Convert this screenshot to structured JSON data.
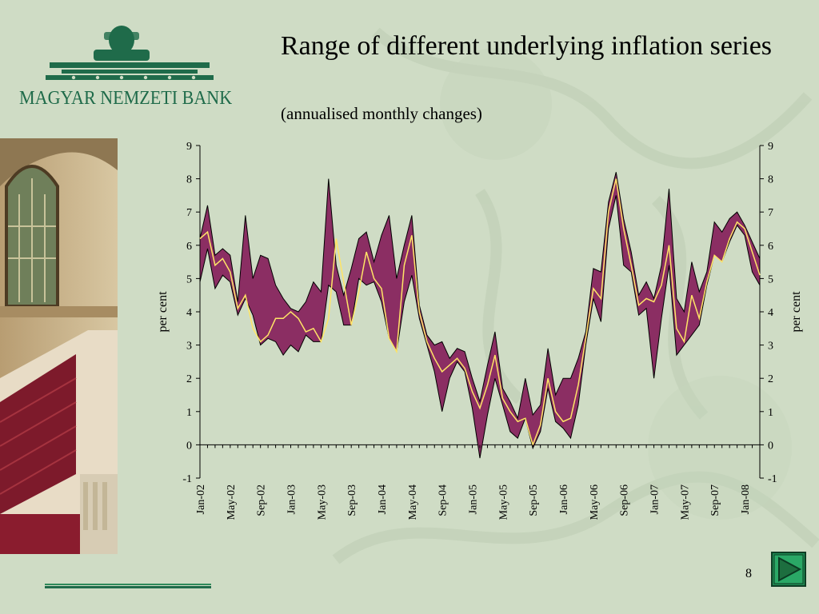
{
  "header": {
    "bank_name": "MAGYAR NEMZETI BANK",
    "title": "Range of different underlying inflation series",
    "subtitle": "(annualised monthly changes)"
  },
  "footer": {
    "page_number": "8",
    "next_icon": "play-triangle-icon"
  },
  "colors": {
    "background": "#cfdcc5",
    "band_fill": "#8b2e63",
    "center_line": "#ffe566",
    "brand_green": "#1f6b4a"
  },
  "chart_data": {
    "type": "area",
    "ylabel_left": "per cent",
    "ylabel_right": "per cent",
    "ylim": [
      -1,
      9
    ],
    "yticks": [
      -1,
      0,
      1,
      2,
      3,
      4,
      5,
      6,
      7,
      8,
      9
    ],
    "xtick_labels": [
      "Jan-02",
      "May-02",
      "Sep-02",
      "Jan-03",
      "May-03",
      "Sep-03",
      "Jan-04",
      "May-04",
      "Sep-04",
      "Jan-05",
      "May-05",
      "Sep-05",
      "Jan-06",
      "May-06",
      "Sep-06",
      "Jan-07",
      "May-07",
      "Sep-07",
      "Jan-08"
    ],
    "x": [
      "Jan-02",
      "Feb-02",
      "Mar-02",
      "Apr-02",
      "May-02",
      "Jun-02",
      "Jul-02",
      "Aug-02",
      "Sep-02",
      "Oct-02",
      "Nov-02",
      "Dec-02",
      "Jan-03",
      "Feb-03",
      "Mar-03",
      "Apr-03",
      "May-03",
      "Jun-03",
      "Jul-03",
      "Aug-03",
      "Sep-03",
      "Oct-03",
      "Nov-03",
      "Dec-03",
      "Jan-04",
      "Feb-04",
      "Mar-04",
      "Apr-04",
      "May-04",
      "Jun-04",
      "Jul-04",
      "Aug-04",
      "Sep-04",
      "Oct-04",
      "Nov-04",
      "Dec-04",
      "Jan-05",
      "Feb-05",
      "Mar-05",
      "Apr-05",
      "May-05",
      "Jun-05",
      "Jul-05",
      "Aug-05",
      "Sep-05",
      "Oct-05",
      "Nov-05",
      "Dec-05",
      "Jan-06",
      "Feb-06",
      "Mar-06",
      "Apr-06",
      "May-06",
      "Jun-06",
      "Jul-06",
      "Aug-06",
      "Sep-06",
      "Oct-06",
      "Nov-06",
      "Dec-06",
      "Jan-07",
      "Feb-07",
      "Mar-07",
      "Apr-07",
      "May-07",
      "Jun-07",
      "Jul-07",
      "Aug-07",
      "Sep-07",
      "Oct-07",
      "Nov-07",
      "Dec-07",
      "Jan-08",
      "Feb-08",
      "Mar-08"
    ],
    "series": [
      {
        "role": "range-maximum",
        "values": [
          6.2,
          7.2,
          5.7,
          5.9,
          5.7,
          4.3,
          6.9,
          5.0,
          5.7,
          5.6,
          4.8,
          4.4,
          4.1,
          4.0,
          4.3,
          4.9,
          4.6,
          8.0,
          5.4,
          4.5,
          5.3,
          6.2,
          6.4,
          5.5,
          6.3,
          6.9,
          5.0,
          6.0,
          6.9,
          4.2,
          3.3,
          3.0,
          3.1,
          2.6,
          2.9,
          2.8,
          2.0,
          1.3,
          2.4,
          3.4,
          1.7,
          1.3,
          0.8,
          2.0,
          0.9,
          1.2,
          2.9,
          1.5,
          2.0,
          2.0,
          2.6,
          3.4,
          5.3,
          5.2,
          7.3,
          8.2,
          6.8,
          5.8,
          4.5,
          4.9,
          4.4,
          5.4,
          7.7,
          4.4,
          4.0,
          5.5,
          4.6,
          5.2,
          6.7,
          6.4,
          6.8,
          7.0,
          6.6,
          6.1,
          5.6
        ]
      },
      {
        "role": "range-minimum",
        "values": [
          4.9,
          5.9,
          4.7,
          5.1,
          4.9,
          3.9,
          4.4,
          3.9,
          3.0,
          3.2,
          3.1,
          2.7,
          3.0,
          2.8,
          3.3,
          3.1,
          3.1,
          4.8,
          4.6,
          3.6,
          3.6,
          5.0,
          4.8,
          4.9,
          4.3,
          3.2,
          2.8,
          4.3,
          5.1,
          3.8,
          3.0,
          2.2,
          1.0,
          2.0,
          2.5,
          2.2,
          1.1,
          -0.4,
          0.9,
          2.0,
          1.2,
          0.4,
          0.2,
          0.8,
          -0.1,
          0.4,
          1.7,
          0.7,
          0.5,
          0.2,
          1.2,
          3.0,
          4.4,
          3.7,
          6.5,
          7.5,
          5.4,
          5.2,
          3.9,
          4.1,
          2.0,
          3.8,
          5.4,
          2.7,
          3.0,
          3.3,
          3.6,
          4.8,
          5.7,
          5.5,
          6.1,
          6.6,
          6.3,
          5.2,
          4.8
        ]
      },
      {
        "role": "centre-line",
        "values": [
          6.2,
          6.4,
          5.4,
          5.6,
          5.2,
          4.1,
          4.5,
          3.5,
          3.1,
          3.3,
          3.8,
          3.8,
          4.0,
          3.8,
          3.4,
          3.5,
          3.1,
          3.8,
          6.2,
          4.9,
          3.6,
          4.6,
          5.8,
          5.0,
          4.7,
          3.2,
          2.8,
          5.4,
          6.3,
          4.0,
          3.1,
          2.6,
          2.2,
          2.4,
          2.6,
          2.3,
          1.6,
          1.1,
          1.8,
          2.7,
          1.4,
          1.0,
          0.7,
          0.8,
          0.0,
          0.6,
          2.0,
          1.0,
          0.7,
          0.8,
          1.8,
          3.2,
          4.7,
          4.4,
          7.0,
          8.0,
          6.5,
          5.4,
          4.2,
          4.4,
          4.3,
          4.8,
          6.0,
          3.5,
          3.1,
          4.5,
          3.8,
          4.9,
          5.7,
          5.5,
          6.2,
          6.7,
          6.5,
          5.8,
          5.1
        ]
      }
    ]
  }
}
